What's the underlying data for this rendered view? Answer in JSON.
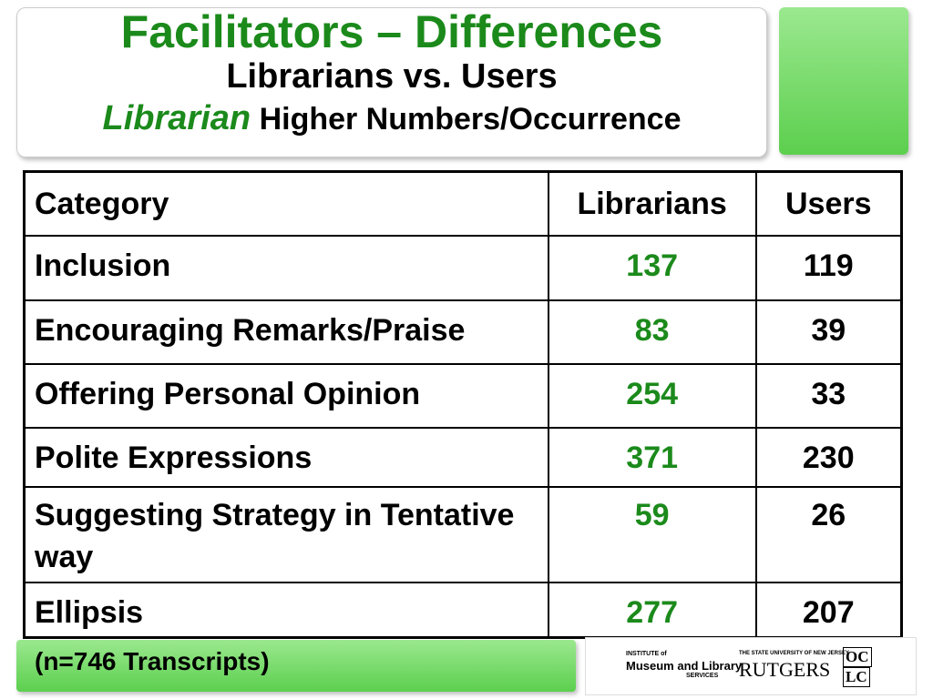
{
  "header": {
    "title": "Facilitators – Differences",
    "subtitle": "Librarians vs. Users",
    "note_emphasis": "Librarian",
    "note": "Higher Numbers/Occurrence"
  },
  "table": {
    "columns": [
      "Category",
      "Librarians",
      "Users"
    ],
    "rows": [
      [
        "Inclusion",
        137,
        119
      ],
      [
        "Encouraging Remarks/Praise",
        83,
        39
      ],
      [
        "Offering Personal Opinion",
        254,
        33
      ],
      [
        "Polite Expressions",
        371,
        230
      ],
      [
        "Suggesting Strategy in Tentative way",
        59,
        26
      ],
      [
        "Ellipsis",
        277,
        207
      ]
    ]
  },
  "footnote": "(n=746 Transcripts)",
  "logos": {
    "imls_top": "INSTITUTE of",
    "imls_main": "Museum and Library",
    "imls_bottom": "SERVICES",
    "rutgers_top": "THE STATE UNIVERSITY OF NEW JERSEY",
    "rutgers": "RUTGERS",
    "oclc_top": "OC",
    "oclc_bottom": "LC"
  }
}
